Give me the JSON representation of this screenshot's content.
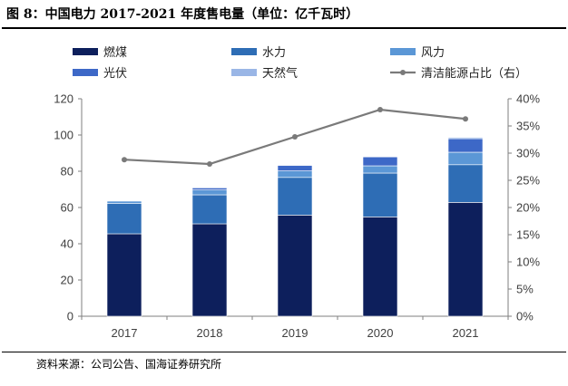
{
  "header": {
    "title": "图 8：中国电力 2017-2021 年度售电量（单位：亿千瓦时）"
  },
  "footer": {
    "source": "资料来源：公司公告、国海证券研究所"
  },
  "chart_data": {
    "type": "bar",
    "stacked": true,
    "title": "图 8：中国电力 2017-2021 年度售电量（单位：亿千瓦时）",
    "categories": [
      "2017",
      "2018",
      "2019",
      "2020",
      "2021"
    ],
    "series": [
      {
        "name": "燃煤",
        "kind": "bar",
        "axis": "left",
        "color": "#0d1f5c",
        "values": [
          45.5,
          51.0,
          55.8,
          54.8,
          62.8
        ]
      },
      {
        "name": "水力",
        "kind": "bar",
        "axis": "left",
        "color": "#2e6db5",
        "values": [
          16.7,
          16.0,
          20.8,
          24.2,
          20.8
        ]
      },
      {
        "name": "风力",
        "kind": "bar",
        "axis": "left",
        "color": "#5b97d6",
        "values": [
          1.3,
          2.7,
          3.6,
          4.0,
          6.9
        ]
      },
      {
        "name": "光伏",
        "kind": "bar",
        "axis": "left",
        "color": "#3d68c7",
        "values": [
          0.0,
          1.1,
          3.0,
          4.9,
          7.5
        ]
      },
      {
        "name": "天然气",
        "kind": "bar",
        "axis": "left",
        "color": "#9ab6e6",
        "values": [
          0.0,
          0.0,
          0.0,
          0.0,
          0.7
        ]
      },
      {
        "name": "清洁能源占比（右）",
        "kind": "line",
        "axis": "right",
        "color": "#7a7a7a",
        "values": [
          0.288,
          0.28,
          0.33,
          0.38,
          0.363
        ]
      }
    ],
    "y_left": {
      "min": 0,
      "max": 120,
      "step": 20,
      "tick_labels": [
        "0",
        "20",
        "40",
        "60",
        "80",
        "100",
        "120"
      ]
    },
    "y_right": {
      "min": 0,
      "max": 0.4,
      "step": 0.05,
      "tick_labels": [
        "0%",
        "5%",
        "10%",
        "15%",
        "20%",
        "25%",
        "30%",
        "35%",
        "40%"
      ]
    },
    "legend_position": "top",
    "grid": false
  }
}
